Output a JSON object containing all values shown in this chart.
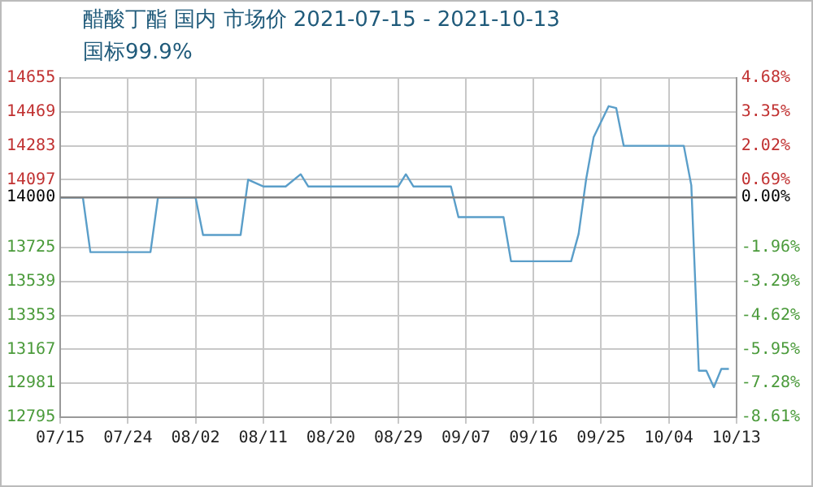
{
  "chart_data": {
    "type": "line",
    "title": "醋酸丁酯 国内 市场价 2021-07-15 - 2021-10-13",
    "subtitle": "国标99.9%",
    "x": [
      "2021-07-15",
      "2021-07-18",
      "2021-07-19",
      "2021-07-27",
      "2021-07-28",
      "2021-08-02",
      "2021-08-03",
      "2021-08-08",
      "2021-08-09",
      "2021-08-11",
      "2021-08-14",
      "2021-08-16",
      "2021-08-17",
      "2021-08-29",
      "2021-08-30",
      "2021-08-31",
      "2021-09-05",
      "2021-09-06",
      "2021-09-12",
      "2021-09-13",
      "2021-09-21",
      "2021-09-22",
      "2021-09-23",
      "2021-09-24",
      "2021-09-26",
      "2021-09-27",
      "2021-09-28",
      "2021-10-06",
      "2021-10-07",
      "2021-10-08",
      "2021-10-09",
      "2021-10-10",
      "2021-10-11",
      "2021-10-12"
    ],
    "series": [
      {
        "color": "#5a9ec9",
        "values": [
          14000,
          14000,
          13700,
          13700,
          14000,
          14000,
          13794,
          13794,
          14097,
          14060,
          14060,
          14127,
          14060,
          14060,
          14127,
          14060,
          14060,
          13892,
          13892,
          13650,
          13650,
          13800,
          14100,
          14330,
          14500,
          14490,
          14283,
          14283,
          14066,
          13050,
          13050,
          12960,
          13060,
          13060
        ]
      }
    ],
    "xlim": [
      "2021-07-15",
      "2021-10-13"
    ],
    "xticks": [
      {
        "value": "2021-07-15",
        "label": "07/15"
      },
      {
        "value": "2021-07-24",
        "label": "07/24"
      },
      {
        "value": "2021-08-02",
        "label": "08/02"
      },
      {
        "value": "2021-08-11",
        "label": "08/11"
      },
      {
        "value": "2021-08-20",
        "label": "08/20"
      },
      {
        "value": "2021-08-29",
        "label": "08/29"
      },
      {
        "value": "2021-09-07",
        "label": "09/07"
      },
      {
        "value": "2021-09-16",
        "label": "09/16"
      },
      {
        "value": "2021-09-25",
        "label": "09/25"
      },
      {
        "value": "2021-10-04",
        "label": "10/04"
      },
      {
        "value": "2021-10-13",
        "label": "10/13"
      }
    ],
    "ylim": [
      12795,
      14655
    ],
    "yticks": [
      12795,
      12981,
      13167,
      13353,
      13539,
      13725,
      14000,
      14097,
      14283,
      14469,
      14655
    ],
    "y2lim": [
      -8.61,
      4.68
    ],
    "y2ticks": [
      {
        "value": -8.61,
        "label": "-8.61%"
      },
      {
        "value": -7.28,
        "label": "-7.28%"
      },
      {
        "value": -5.95,
        "label": "-5.95%"
      },
      {
        "value": -4.62,
        "label": "-4.62%"
      },
      {
        "value": -3.29,
        "label": "-3.29%"
      },
      {
        "value": -1.96,
        "label": "-1.96%"
      },
      {
        "value": 0,
        "label": "0.00%"
      },
      {
        "value": 0.69,
        "label": "0.69%"
      },
      {
        "value": 2.02,
        "label": "2.02%"
      },
      {
        "value": 3.35,
        "label": "3.35%"
      },
      {
        "value": 4.68,
        "label": "4.68%"
      }
    ],
    "ref_lines": [
      {
        "axis": "y",
        "value": 14000,
        "color": "#808080"
      }
    ],
    "grid": true,
    "legend": false,
    "marker": "none",
    "line_style": "solid"
  }
}
